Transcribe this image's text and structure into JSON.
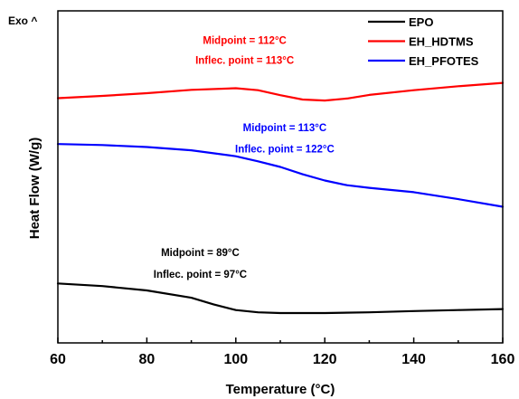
{
  "chart_data": {
    "type": "line",
    "xlabel": "Temperature (°C)",
    "ylabel": "Heat Flow (W/g)",
    "corner_label": "Exo ^",
    "xlim": [
      60,
      160
    ],
    "ylim": [
      0,
      1
    ],
    "x_ticks": [
      60,
      80,
      100,
      120,
      140,
      160
    ],
    "x_tick_labels": [
      "60",
      "80",
      "100",
      "120",
      "140",
      "160"
    ],
    "y_tick_labels": [],
    "grid": false,
    "legend_position": "top-right",
    "series": [
      {
        "name": "EPO",
        "color": "#000000",
        "x": [
          60,
          70,
          80,
          90,
          95,
          100,
          105,
          110,
          120,
          130,
          140,
          150,
          160
        ],
        "y": [
          0.179,
          0.171,
          0.158,
          0.136,
          0.116,
          0.099,
          0.092,
          0.09,
          0.09,
          0.092,
          0.096,
          0.099,
          0.102
        ]
      },
      {
        "name": "EH_HDTMS",
        "color": "#ff0000",
        "x": [
          60,
          70,
          80,
          90,
          100,
          105,
          110,
          115,
          120,
          125,
          130,
          140,
          150,
          160
        ],
        "y": [
          0.737,
          0.744,
          0.752,
          0.762,
          0.767,
          0.761,
          0.746,
          0.733,
          0.73,
          0.736,
          0.747,
          0.761,
          0.773,
          0.783
        ]
      },
      {
        "name": "EH_PFOTES",
        "color": "#0000ff",
        "x": [
          60,
          70,
          80,
          90,
          100,
          105,
          110,
          115,
          120,
          125,
          130,
          140,
          150,
          160
        ],
        "y": [
          0.599,
          0.596,
          0.59,
          0.58,
          0.562,
          0.547,
          0.53,
          0.508,
          0.489,
          0.475,
          0.467,
          0.454,
          0.433,
          0.41
        ]
      }
    ],
    "annotations": [
      {
        "lines": [
          "Midpoint = 112°C",
          "Inflec. point = 113°C"
        ],
        "color": "#ff0000",
        "x": 102.0,
        "y": [
          0.901,
          0.84
        ]
      },
      {
        "lines": [
          "Midpoint = 113°C",
          "Inflec. point = 122°C"
        ],
        "color": "#0000ff",
        "x": 111.0,
        "y": [
          0.638,
          0.574
        ]
      },
      {
        "lines": [
          "Midpoint = 89°C",
          "Inflec. point = 97°C"
        ],
        "color": "#000000",
        "x": 92.0,
        "y": [
          0.262,
          0.196
        ]
      }
    ]
  }
}
